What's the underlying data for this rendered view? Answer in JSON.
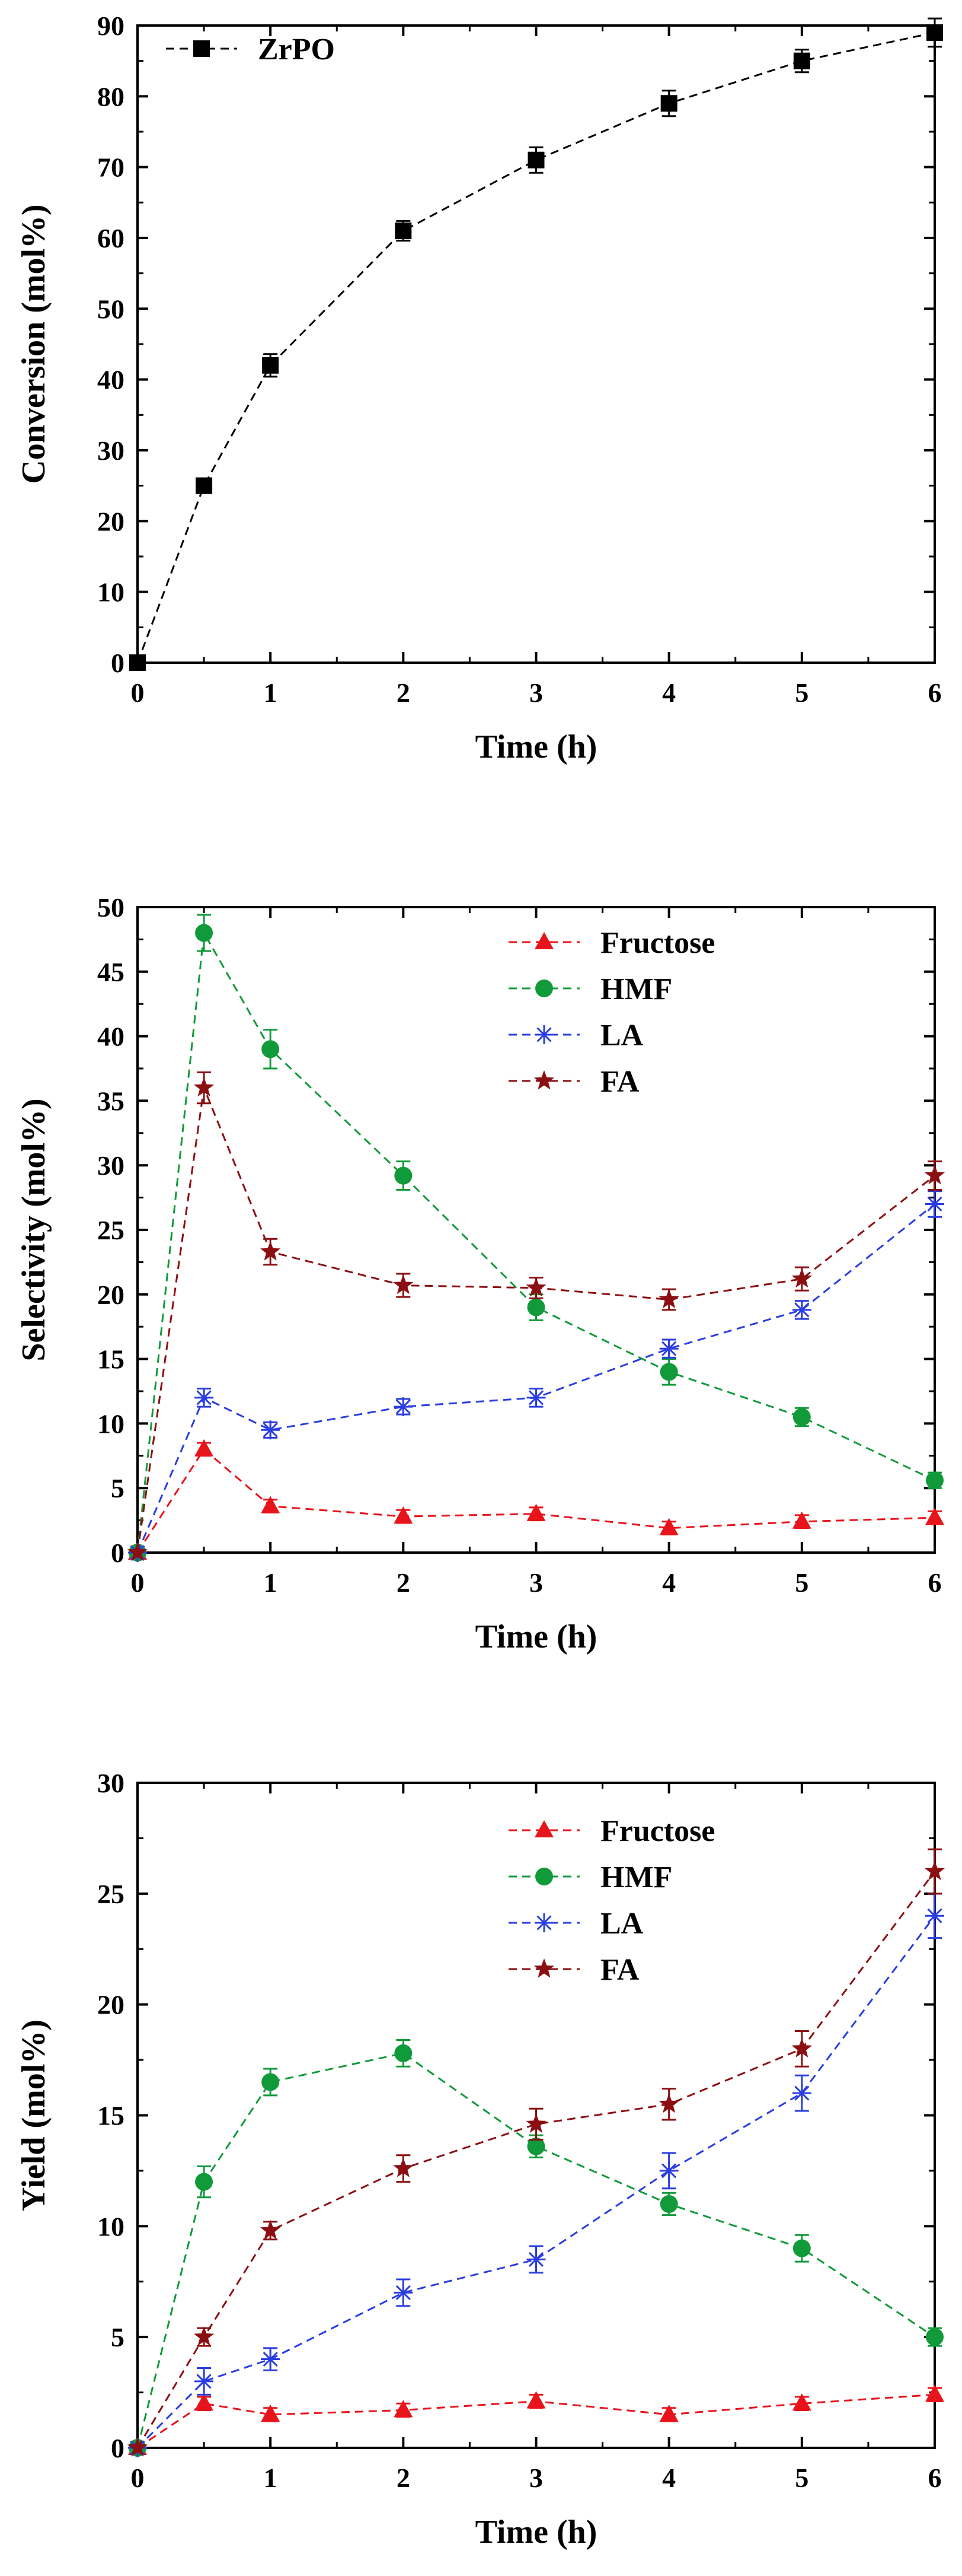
{
  "chart_data": [
    {
      "type": "line",
      "title": "",
      "xlabel": "Time (h)",
      "ylabel": "Conversion (mol%)",
      "xlim": [
        0,
        6
      ],
      "ylim": [
        0,
        90
      ],
      "xticks": [
        0,
        1,
        2,
        3,
        4,
        5,
        6
      ],
      "yticks": [
        0,
        10,
        20,
        30,
        40,
        50,
        60,
        70,
        80,
        90
      ],
      "legend_position": "top-left",
      "x": [
        0,
        0.5,
        1,
        2,
        3,
        4,
        5,
        6
      ],
      "series": [
        {
          "name": "ZrPO",
          "color": "#000000",
          "marker": "square",
          "values": [
            0,
            25,
            42,
            61,
            71,
            79,
            85,
            89
          ],
          "errors": [
            0,
            0.8,
            1.6,
            1.4,
            1.8,
            1.8,
            1.6,
            2.0
          ]
        }
      ]
    },
    {
      "type": "line",
      "title": "",
      "xlabel": "Time (h)",
      "ylabel": "Selectivity (mol%)",
      "xlim": [
        0,
        6
      ],
      "ylim": [
        0,
        50
      ],
      "xticks": [
        0,
        1,
        2,
        3,
        4,
        5,
        6
      ],
      "yticks": [
        0,
        5,
        10,
        15,
        20,
        25,
        30,
        35,
        40,
        45,
        50
      ],
      "legend_position": "top-right",
      "x": [
        0,
        0.5,
        1,
        2,
        3,
        4,
        5,
        6
      ],
      "series": [
        {
          "name": "Fructose",
          "color": "#e8141b",
          "marker": "triangle",
          "values": [
            0,
            8.0,
            3.6,
            2.8,
            3.0,
            1.9,
            2.4,
            2.7
          ],
          "errors": [
            0,
            0.5,
            0.5,
            0.5,
            0.5,
            0.5,
            0.5,
            0.5
          ]
        },
        {
          "name": "HMF",
          "color": "#119a3a",
          "marker": "circle",
          "values": [
            0,
            48,
            39,
            29.2,
            19,
            14,
            10.5,
            5.6
          ],
          "errors": [
            0,
            1.4,
            1.5,
            1.1,
            1.0,
            1.0,
            0.7,
            0.6
          ]
        },
        {
          "name": "LA",
          "color": "#2a3de0",
          "marker": "asterisk",
          "values": [
            0,
            12.0,
            9.5,
            11.3,
            12.0,
            15.8,
            18.8,
            27.0
          ],
          "errors": [
            0,
            0.7,
            0.6,
            0.6,
            0.7,
            0.7,
            0.7,
            1.0
          ]
        },
        {
          "name": "FA",
          "color": "#8b0f12",
          "marker": "star",
          "values": [
            0,
            36,
            23.3,
            20.7,
            20.5,
            19.6,
            21.2,
            29.2
          ],
          "errors": [
            0,
            1.2,
            1.0,
            0.9,
            0.8,
            0.8,
            0.9,
            1.1
          ]
        }
      ]
    },
    {
      "type": "line",
      "title": "",
      "xlabel": "Time (h)",
      "ylabel": "Yield (mol%)",
      "xlim": [
        0,
        6
      ],
      "ylim": [
        0,
        30
      ],
      "xticks": [
        0,
        1,
        2,
        3,
        4,
        5,
        6
      ],
      "yticks": [
        0,
        5,
        10,
        15,
        20,
        25,
        30
      ],
      "legend_position": "top-right",
      "x": [
        0,
        0.5,
        1,
        2,
        3,
        4,
        5,
        6
      ],
      "series": [
        {
          "name": "Fructose",
          "color": "#e8141b",
          "marker": "triangle",
          "values": [
            0,
            2.0,
            1.5,
            1.7,
            2.1,
            1.5,
            2.0,
            2.4
          ],
          "errors": [
            0,
            0.3,
            0.3,
            0.3,
            0.3,
            0.3,
            0.3,
            0.3
          ]
        },
        {
          "name": "HMF",
          "color": "#119a3a",
          "marker": "circle",
          "values": [
            0,
            12.0,
            16.5,
            17.8,
            13.6,
            11.0,
            9.0,
            5.0
          ],
          "errors": [
            0,
            0.7,
            0.6,
            0.6,
            0.5,
            0.5,
            0.6,
            0.4
          ]
        },
        {
          "name": "LA",
          "color": "#2a3de0",
          "marker": "asterisk",
          "values": [
            0,
            3.0,
            4.0,
            7.0,
            8.5,
            12.5,
            16.0,
            24.0
          ],
          "errors": [
            0,
            0.6,
            0.5,
            0.6,
            0.6,
            0.8,
            0.8,
            1.0
          ]
        },
        {
          "name": "FA",
          "color": "#8b0f12",
          "marker": "star",
          "values": [
            0,
            5.0,
            9.8,
            12.6,
            14.6,
            15.5,
            18.0,
            26.0
          ],
          "errors": [
            0,
            0.4,
            0.4,
            0.6,
            0.7,
            0.7,
            0.8,
            1.0
          ]
        }
      ]
    }
  ]
}
